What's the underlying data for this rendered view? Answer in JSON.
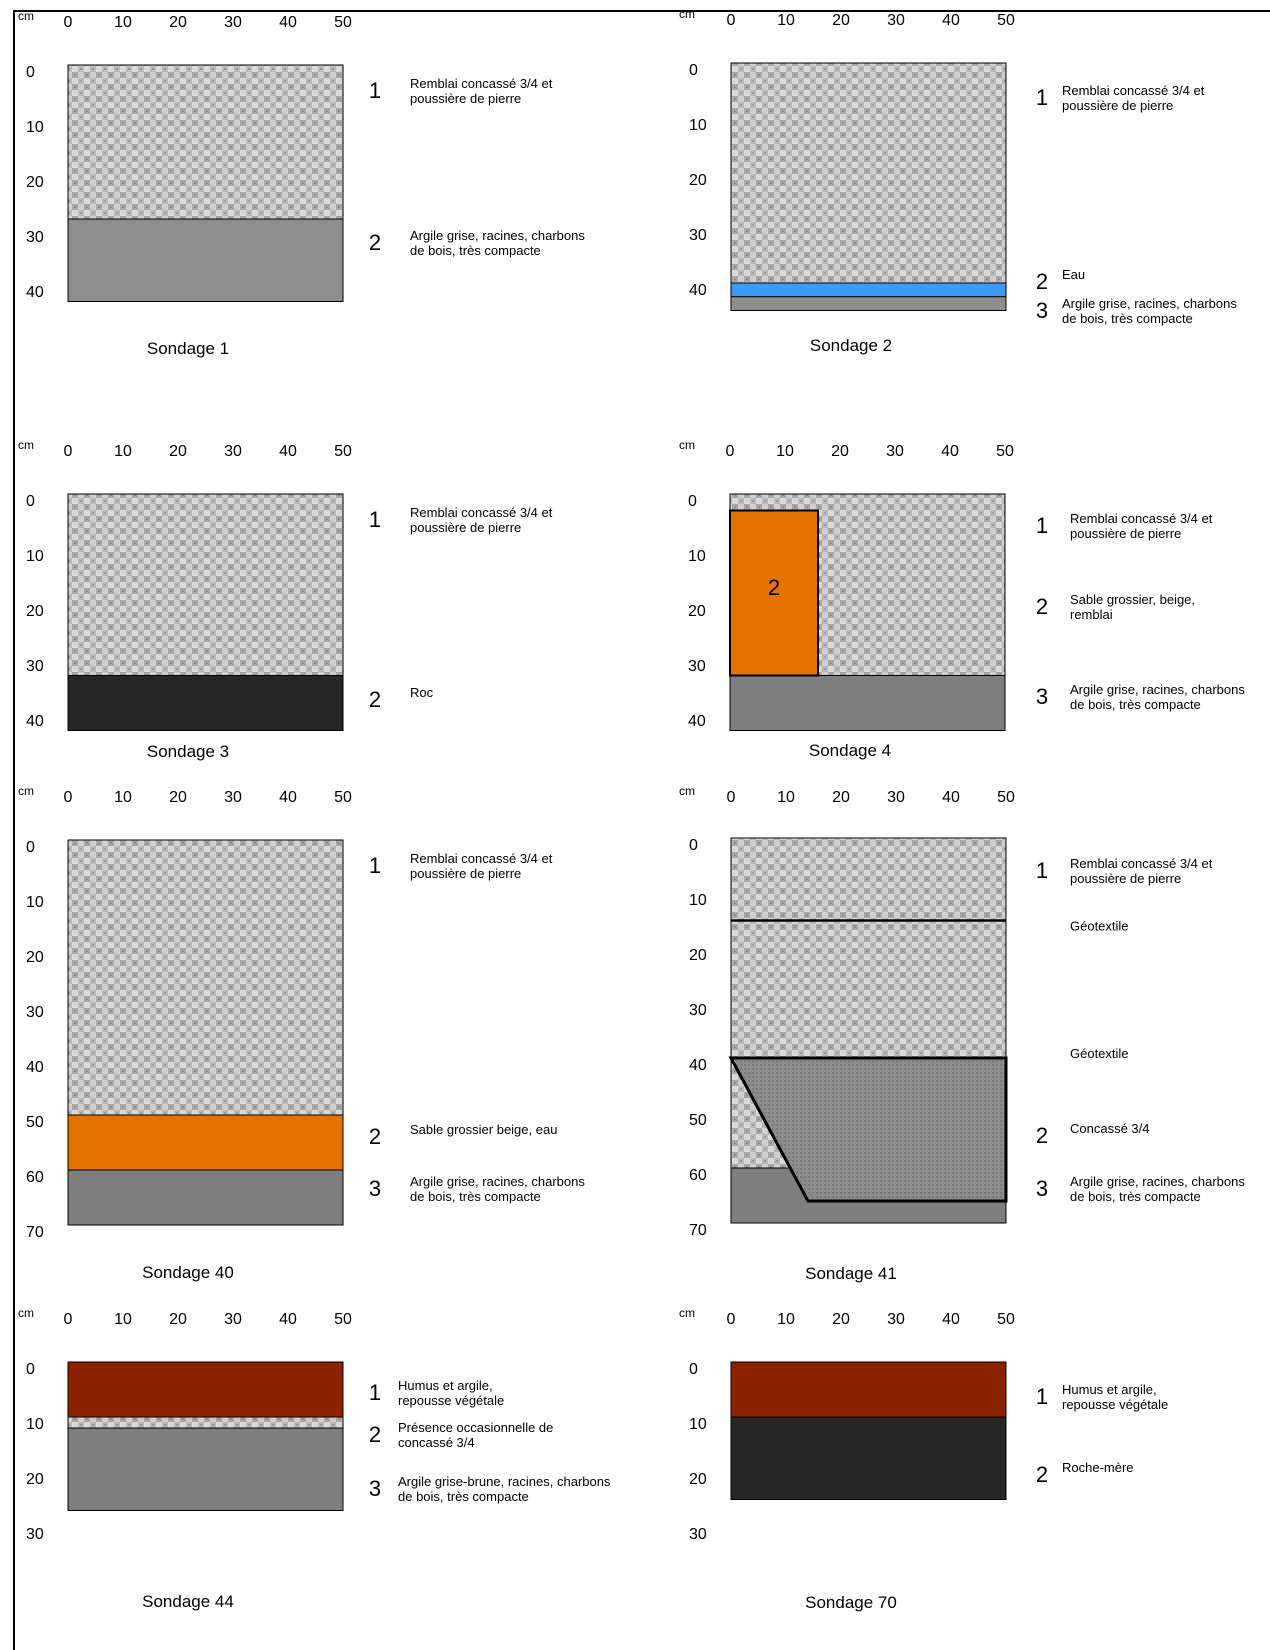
{
  "colors": {
    "remblai_light": "#c9c9c9",
    "remblai_dark": "#9a9a9a",
    "argile": "#8e8e8e",
    "argile_dark": "#7e7e7e",
    "eau": "#3b9bff",
    "sable": "#e57200",
    "roc": "#262626",
    "humus": "#8b2300",
    "line": "#000000"
  },
  "axis": {
    "unit": "cm",
    "x_ticks": [
      "0",
      "10",
      "20",
      "30",
      "40",
      "50"
    ]
  },
  "soundings": [
    {
      "title": "Sondage 1",
      "depth_ticks": [
        "0",
        "10",
        "20",
        "30",
        "40"
      ],
      "layers": [
        {
          "number": "1",
          "material": "remblai",
          "from": 0,
          "to": 28,
          "description": [
            "Remblai concassé 3/4 et",
            "poussière de pierre"
          ]
        },
        {
          "number": "2",
          "material": "argile",
          "from": 28,
          "to": 43,
          "description": [
            "Argile grise, racines, charbons",
            "de bois, très compacte"
          ]
        }
      ]
    },
    {
      "title": "Sondage 2",
      "depth_ticks": [
        "0",
        "10",
        "20",
        "30",
        "40"
      ],
      "layers": [
        {
          "number": "1",
          "material": "remblai",
          "from": 0,
          "to": 40,
          "description": [
            "Remblai concassé 3/4 et",
            "poussière de pierre"
          ]
        },
        {
          "number": "2",
          "material": "eau",
          "from": 40,
          "to": 42.5,
          "description": [
            "Eau"
          ]
        },
        {
          "number": "3",
          "material": "argile",
          "from": 42.5,
          "to": 45,
          "description": [
            "Argile grise, racines, charbons",
            "de bois, très compacte"
          ]
        }
      ]
    },
    {
      "title": "Sondage 3",
      "depth_ticks": [
        "0",
        "10",
        "20",
        "30",
        "40"
      ],
      "layers": [
        {
          "number": "1",
          "material": "remblai",
          "from": 0,
          "to": 33,
          "description": [
            "Remblai concassé 3/4 et",
            "poussière de pierre"
          ]
        },
        {
          "number": "2",
          "material": "roc",
          "from": 33,
          "to": 43,
          "description": [
            "Roc"
          ]
        }
      ]
    },
    {
      "title": "Sondage 4",
      "depth_ticks": [
        "0",
        "10",
        "20",
        "30",
        "40"
      ],
      "layers": [
        {
          "number": "1",
          "material": "remblai",
          "from": 0,
          "to": 33,
          "description": [
            "Remblai concassé 3/4 et",
            "poussière de pierre"
          ]
        },
        {
          "number": "2",
          "material": "sable",
          "from": 3,
          "to": 33,
          "x_to": 16,
          "description": [
            "Sable grossier, beige,",
            "remblai"
          ]
        },
        {
          "number": "3",
          "material": "argile_dark",
          "from": 33,
          "to": 43,
          "description": [
            "Argile grise, racines, charbons",
            "de bois, très compacte"
          ]
        }
      ]
    },
    {
      "title": "Sondage 40",
      "depth_ticks": [
        "0",
        "10",
        "20",
        "30",
        "40",
        "50",
        "60",
        "70"
      ],
      "layers": [
        {
          "number": "1",
          "material": "remblai",
          "from": 0,
          "to": 50,
          "description": [
            "Remblai concassé 3/4 et",
            "poussière de pierre"
          ]
        },
        {
          "number": "2",
          "material": "sable",
          "from": 50,
          "to": 60,
          "description": [
            "Sable grossier beige, eau"
          ]
        },
        {
          "number": "3",
          "material": "argile_dark",
          "from": 60,
          "to": 70,
          "description": [
            "Argile grise, racines, charbons",
            "de bois, très compacte"
          ]
        }
      ]
    },
    {
      "title": "Sondage 41",
      "depth_ticks": [
        "0",
        "10",
        "20",
        "30",
        "40",
        "50",
        "60",
        "70"
      ],
      "annotations": [
        "Géotextile",
        "Géotextile"
      ],
      "layers": [
        {
          "number": "1",
          "material": "remblai",
          "from": 0,
          "to": 70,
          "description": [
            "Remblai concassé 3/4 et",
            "poussière de pierre"
          ]
        },
        {
          "number": "2",
          "material": "concasse",
          "from": 40,
          "to": 66,
          "description": [
            "Concassé 3/4"
          ]
        },
        {
          "number": "3",
          "material": "argile_dark",
          "from": 60,
          "to": 70,
          "description": [
            "Argile grise, racines, charbons",
            "de bois, très compacte"
          ]
        }
      ]
    },
    {
      "title": "Sondage 44",
      "depth_ticks": [
        "0",
        "10",
        "20",
        "30"
      ],
      "layers": [
        {
          "number": "1",
          "material": "humus",
          "from": 0,
          "to": 10,
          "description": [
            "Humus et argile,",
            "repousse végétale"
          ]
        },
        {
          "number": "2",
          "material": "remblai",
          "from": 10,
          "to": 12,
          "description": [
            "Présence occasionnelle de",
            "concassé 3/4"
          ]
        },
        {
          "number": "3",
          "material": "argile_dark",
          "from": 12,
          "to": 27,
          "description": [
            "Argile grise-brune, racines, charbons",
            "de bois, très compacte"
          ]
        }
      ]
    },
    {
      "title": "Sondage 70",
      "depth_ticks": [
        "0",
        "10",
        "20",
        "30"
      ],
      "layers": [
        {
          "number": "1",
          "material": "humus",
          "from": 0,
          "to": 10,
          "description": [
            "Humus et argile,",
            "repousse végétale"
          ]
        },
        {
          "number": "2",
          "material": "roc",
          "from": 10,
          "to": 25,
          "description": [
            "Roche-mère"
          ]
        }
      ]
    }
  ]
}
